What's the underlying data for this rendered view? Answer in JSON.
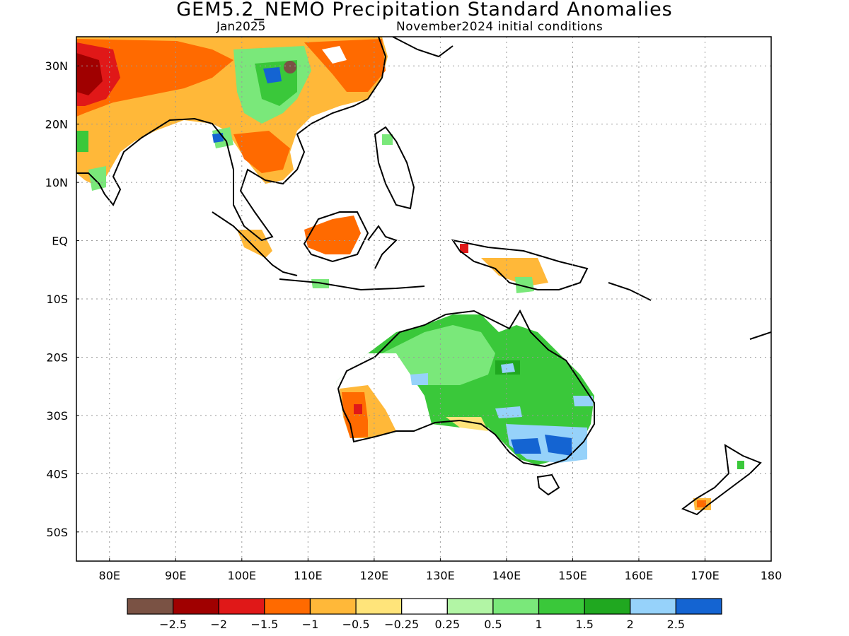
{
  "header": {
    "title": "GEM5.2_NEMO Precipitation Standard Anomalies",
    "month": "Jan2025",
    "init": "November2024 initial conditions"
  },
  "lon_ticks": [
    "80E",
    "90E",
    "100E",
    "110E",
    "120E",
    "130E",
    "140E",
    "150E",
    "160E",
    "170E",
    "180"
  ],
  "lat_ticks": [
    "30N",
    "20N",
    "10N",
    "EQ",
    "10S",
    "20S",
    "30S",
    "40S",
    "50S"
  ],
  "colorbar": {
    "colors": [
      "#7a5244",
      "#a00000",
      "#e01818",
      "#ff6a00",
      "#ffb839",
      "#ffe47a",
      "#ffffff",
      "#b2f5a5",
      "#7ae87a",
      "#3ac83a",
      "#20a820",
      "#96d2fa",
      "#1464d2"
    ],
    "labels": [
      "−2.5",
      "−2",
      "−1.5",
      "−1",
      "−0.5",
      "−0.25",
      "0.25",
      "0.5",
      "1",
      "1.5",
      "2",
      "2.5"
    ]
  }
}
